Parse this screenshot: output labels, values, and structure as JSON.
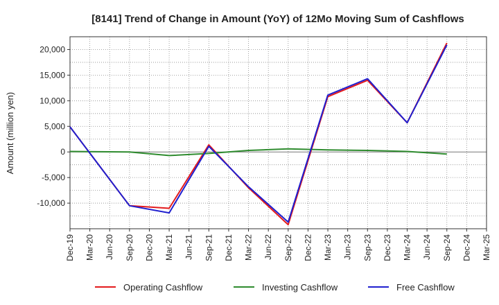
{
  "chart_data": {
    "type": "line",
    "title": "[8141]  Trend of Change in Amount (YoY) of 12Mo Moving Sum of Cashflows",
    "xlabel": "",
    "ylabel": "Amount (million yen)",
    "categories": [
      "Dec-19",
      "Mar-20",
      "Jun-20",
      "Sep-20",
      "Dec-20",
      "Mar-21",
      "Jun-21",
      "Sep-21",
      "Dec-21",
      "Mar-22",
      "Jun-22",
      "Sep-22",
      "Dec-22",
      "Mar-23",
      "Jun-23",
      "Sep-23",
      "Dec-23",
      "Mar-24",
      "Jun-24",
      "Sep-24",
      "Dec-24",
      "Mar-25"
    ],
    "ylim": [
      -15000,
      22500
    ],
    "yticks": [
      -10000,
      -5000,
      0,
      5000,
      10000,
      15000,
      20000
    ],
    "ytick_labels": [
      "-10,000",
      "-5,000",
      "0",
      "5,000",
      "10,000",
      "15,000",
      "20,000"
    ],
    "grid": true,
    "legend_position": "bottom",
    "series": [
      {
        "name": "Operating Cashflow",
        "color": "#e31a1c",
        "values": [
          4900,
          null,
          null,
          -10500,
          null,
          -11000,
          null,
          1400,
          null,
          -7000,
          null,
          -14200,
          null,
          10800,
          null,
          14000,
          null,
          5700,
          null,
          21300,
          null,
          null
        ]
      },
      {
        "name": "Investing Cashflow",
        "color": "#2e8b2e",
        "values": [
          100,
          null,
          null,
          0,
          null,
          -700,
          null,
          -300,
          null,
          300,
          null,
          600,
          null,
          400,
          null,
          300,
          null,
          100,
          null,
          -400,
          null,
          null
        ]
      },
      {
        "name": "Free Cashflow",
        "color": "#1f1fcf",
        "values": [
          4900,
          null,
          null,
          -10500,
          null,
          -11900,
          null,
          1100,
          null,
          -6800,
          null,
          -13700,
          null,
          11100,
          null,
          14300,
          null,
          5700,
          null,
          20900,
          null,
          null
        ]
      }
    ]
  }
}
